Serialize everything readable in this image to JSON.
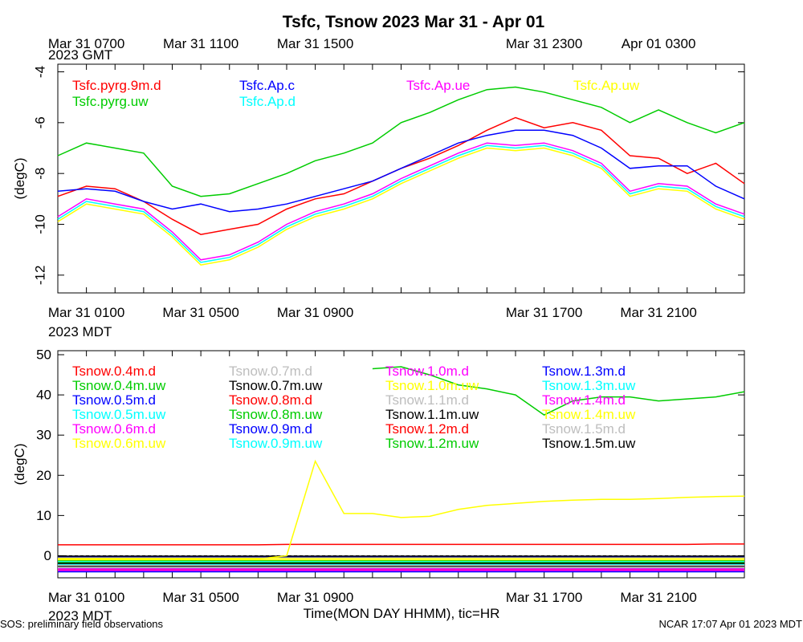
{
  "title": "Tsfc, Tsnow 2023 Mar 31 - Apr 01",
  "footer_left": "SOS: preliminary field observations",
  "footer_right": "NCAR 17:07 Apr 01 2023 MDT",
  "xlabel": "Time(MON DAY HHMM), tic=HR",
  "gmt_label": "2023 GMT",
  "mdt_label": "2023 MDT",
  "time_range_hours_mdt": [
    0,
    24
  ],
  "top_ticks_gmt": [
    "Mar 31 0700",
    "Mar 31 1100",
    "Mar 31 1500",
    "Mar 31 2300",
    "Apr 01 0300"
  ],
  "bottom_ticks_mdt": [
    "Mar 31 0100",
    "Mar 31 0500",
    "Mar 31 0900",
    "Mar 31 1700",
    "Mar 31 2100"
  ],
  "chart_data": [
    {
      "type": "line",
      "ylabel": "(degC)",
      "ylim": [
        -12.7,
        -3.7
      ],
      "yticks": [
        -12,
        -10,
        -8,
        -6,
        -4
      ],
      "x_hours": [
        0,
        1,
        2,
        3,
        4,
        5,
        6,
        7,
        8,
        9,
        10,
        11,
        12,
        13,
        14,
        15,
        16,
        17,
        18,
        19,
        20,
        21,
        22,
        23,
        24
      ],
      "series": [
        {
          "name": "Tsfc.pyrg.9m.d",
          "color": "#ff0000",
          "values": [
            -8.9,
            -8.5,
            -8.6,
            -9.1,
            -9.8,
            -10.4,
            -10.2,
            -10.0,
            -9.4,
            -9.0,
            -8.8,
            -8.3,
            -7.8,
            -7.4,
            -6.9,
            -6.3,
            -5.8,
            -6.2,
            -6.0,
            -6.3,
            -7.3,
            -7.4,
            -8.0,
            -7.6,
            -8.4
          ]
        },
        {
          "name": "Tsfc.pyrg.uw",
          "color": "#00cc00",
          "values": [
            -7.3,
            -6.8,
            -7.0,
            -7.2,
            -8.5,
            -8.9,
            -8.8,
            -8.4,
            -8.0,
            -7.5,
            -7.2,
            -6.8,
            -6.0,
            -5.6,
            -5.1,
            -4.7,
            -4.6,
            -4.8,
            -5.1,
            -5.4,
            -6.0,
            -5.5,
            -6.0,
            -6.4,
            -6.0
          ]
        },
        {
          "name": "Tsfc.Ap.c",
          "color": "#0000ff",
          "values": [
            -8.7,
            -8.6,
            -8.7,
            -9.1,
            -9.4,
            -9.2,
            -9.5,
            -9.4,
            -9.2,
            -8.9,
            -8.6,
            -8.3,
            -7.8,
            -7.3,
            -6.8,
            -6.5,
            -6.3,
            -6.3,
            -6.5,
            -7.0,
            -7.8,
            -7.7,
            -7.7,
            -8.5,
            -9.0
          ]
        },
        {
          "name": "Tsfc.Ap.d",
          "color": "#00ffff",
          "values": [
            -9.8,
            -9.1,
            -9.3,
            -9.5,
            -10.4,
            -11.5,
            -11.3,
            -10.8,
            -10.1,
            -9.6,
            -9.3,
            -8.9,
            -8.3,
            -7.8,
            -7.3,
            -6.9,
            -7.0,
            -6.9,
            -7.2,
            -7.7,
            -8.8,
            -8.5,
            -8.6,
            -9.3,
            -9.7
          ]
        },
        {
          "name": "Tsfc.Ap.ue",
          "color": "#ff00ff",
          "values": [
            -9.7,
            -9.0,
            -9.2,
            -9.4,
            -10.3,
            -11.4,
            -11.2,
            -10.7,
            -10.0,
            -9.5,
            -9.2,
            -8.8,
            -8.2,
            -7.7,
            -7.2,
            -6.8,
            -6.9,
            -6.8,
            -7.1,
            -7.6,
            -8.7,
            -8.4,
            -8.5,
            -9.2,
            -9.6
          ]
        },
        {
          "name": "Tsfc.Ap.uw",
          "color": "#ffff00",
          "values": [
            -9.9,
            -9.2,
            -9.4,
            -9.6,
            -10.5,
            -11.6,
            -11.4,
            -10.9,
            -10.2,
            -9.7,
            -9.4,
            -9.0,
            -8.4,
            -7.9,
            -7.4,
            -7.0,
            -7.1,
            -7.0,
            -7.3,
            -7.8,
            -8.9,
            -8.6,
            -8.7,
            -9.4,
            -9.8
          ]
        }
      ]
    },
    {
      "type": "line",
      "ylabel": "(degC)",
      "ylim": [
        -5.5,
        51
      ],
      "yticks": [
        0,
        10,
        20,
        30,
        40,
        50
      ],
      "x_hours": [
        0,
        1,
        2,
        3,
        4,
        5,
        6,
        7,
        8,
        9,
        10,
        11,
        12,
        13,
        14,
        15,
        16,
        17,
        18,
        19,
        20,
        21,
        22,
        23,
        24
      ],
      "series": [
        {
          "name": "Tsnow.0.4m.d",
          "color": "#ff0000",
          "values": [
            2.7,
            2.7,
            2.7,
            2.7,
            2.7,
            2.7,
            2.7,
            2.7,
            2.8,
            2.8,
            2.8,
            2.8,
            2.8,
            2.8,
            2.8,
            2.8,
            2.8,
            2.8,
            2.8,
            2.8,
            2.8,
            2.8,
            2.8,
            2.9,
            2.9
          ]
        },
        {
          "name": "Tsnow.0.4m.uw",
          "color": "#00cc00",
          "values": [
            -1.2,
            -1.2,
            -1.2,
            -1.2,
            -1.2,
            -1.2,
            -1.2,
            -1.2,
            -1.2,
            -1.2,
            -1.2,
            -1.2,
            -1.2,
            -1.2,
            -1.2,
            -1.2,
            -1.2,
            -1.2,
            -1.2,
            -1.2,
            -1.2,
            -1.2,
            -1.2,
            -1.2,
            -1.2
          ]
        },
        {
          "name": "Tsnow.0.5m.d",
          "color": "#0000ff",
          "values": [
            -0.3,
            -0.3,
            -0.3,
            -0.3,
            -0.3,
            -0.3,
            -0.3,
            -0.3,
            -0.3,
            -0.3,
            -0.3,
            -0.3,
            -0.3,
            -0.3,
            -0.3,
            -0.3,
            -0.3,
            -0.3,
            -0.3,
            -0.3,
            -0.3,
            -0.3,
            -0.3,
            -0.3,
            -0.3
          ]
        },
        {
          "name": "Tsnow.0.5m.uw",
          "color": "#00ffff",
          "values": [
            -1.5,
            -1.5,
            -1.5,
            -1.5,
            -1.5,
            -1.5,
            -1.5,
            -1.5,
            -1.5,
            -1.5,
            -1.5,
            -1.5,
            -1.5,
            -1.5,
            -1.5,
            -1.5,
            -1.5,
            -1.5,
            -1.5,
            -1.5,
            -1.5,
            -1.5,
            -1.5,
            -1.5,
            -1.5
          ]
        },
        {
          "name": "Tsnow.0.6m.d",
          "color": "#ff00ff",
          "values": [
            -3.8,
            -3.8,
            -3.8,
            -3.8,
            -3.8,
            -3.8,
            -3.8,
            -3.8,
            -3.8,
            -3.8,
            -3.8,
            -3.8,
            -3.8,
            -3.8,
            -3.8,
            -3.8,
            -3.8,
            -3.8,
            -3.8,
            -3.8,
            -3.8,
            -3.8,
            -3.8,
            -3.8,
            -3.8
          ]
        },
        {
          "name": "Tsnow.0.6m.uw",
          "color": "#ffff00",
          "values": [
            -0.6,
            -0.6,
            -0.6,
            -0.6,
            -0.6,
            -0.6,
            -0.6,
            -0.6,
            -0.6,
            -0.6,
            -0.6,
            -0.6,
            -0.6,
            -0.6,
            -0.6,
            -0.6,
            -0.6,
            -0.6,
            -0.6,
            -0.6,
            -0.6,
            -0.6,
            -0.6,
            -0.6,
            -0.6
          ]
        },
        {
          "name": "Tsnow.0.7m.d",
          "color": "#bebebe",
          "values": [
            -2.8,
            -2.8,
            -2.8,
            -2.8,
            -2.8,
            -2.8,
            -2.8,
            -2.8,
            -2.8,
            -2.8,
            -2.8,
            -2.8,
            -2.8,
            -2.8,
            -2.8,
            -2.8,
            -2.8,
            -2.8,
            -2.8,
            -2.8,
            -2.8,
            -2.8,
            -2.8,
            -2.8,
            -2.8
          ]
        },
        {
          "name": "Tsnow.0.7m.uw",
          "color": "#000000",
          "values": [
            -0.1,
            -0.1,
            -0.1,
            -0.1,
            -0.1,
            -0.1,
            -0.1,
            -0.1,
            -0.1,
            -0.1,
            -0.1,
            -0.1,
            -0.1,
            -0.1,
            -0.1,
            -0.1,
            -0.1,
            -0.1,
            -0.1,
            -0.1,
            -0.1,
            -0.1,
            -0.1,
            -0.1,
            -0.1
          ]
        },
        {
          "name": "Tsnow.0.8m.d",
          "color": "#ff0000",
          "values": [
            -2.3,
            -2.3,
            -2.3,
            -2.3,
            -2.3,
            -2.3,
            -2.3,
            -2.3,
            -2.3,
            -2.3,
            -2.3,
            -2.3,
            -2.3,
            -2.3,
            -2.3,
            -2.3,
            -2.3,
            -2.3,
            -2.3,
            -2.3,
            -2.3,
            -2.3,
            -2.3,
            -2.3,
            -2.3
          ]
        },
        {
          "name": "Tsnow.0.8m.uw",
          "color": "#00cc00",
          "values": [
            -2.0,
            -2.0,
            -2.0,
            -2.0,
            -2.0,
            -2.0,
            -2.0,
            -2.0,
            -2.0,
            -2.0,
            -2.0,
            -2.0,
            -2.0,
            -2.0,
            -2.0,
            -2.0,
            -2.0,
            -2.0,
            -2.0,
            -2.0,
            -2.0,
            -2.0,
            -2.0,
            -2.0,
            -2.0
          ]
        },
        {
          "name": "Tsnow.0.9m.d",
          "color": "#0000ff",
          "values": [
            -3.2,
            -3.2,
            -3.2,
            -3.2,
            -3.2,
            -3.2,
            -3.2,
            -3.2,
            -3.2,
            -3.2,
            -3.2,
            -3.2,
            -3.2,
            -3.2,
            -3.2,
            -3.2,
            -3.2,
            -3.2,
            -3.2,
            -3.2,
            -3.2,
            -3.2,
            -3.2,
            -3.2,
            -3.2
          ]
        },
        {
          "name": "Tsnow.0.9m.uw",
          "color": "#00ffff",
          "values": [
            -2.5,
            -2.5,
            -2.5,
            -2.5,
            -2.5,
            -2.5,
            -2.5,
            -2.5,
            -2.5,
            -2.5,
            -2.5,
            -2.5,
            -2.5,
            -2.5,
            -2.5,
            -2.5,
            -2.5,
            -2.5,
            -2.5,
            -2.5,
            -2.5,
            -2.5,
            -2.5,
            -2.5,
            -2.5
          ]
        },
        {
          "name": "Tsnow.1.0m.d",
          "color": "#ff00ff",
          "values": [
            -3.6,
            -3.6,
            -3.6,
            -3.6,
            -3.6,
            -3.6,
            -3.6,
            -3.6,
            -3.6,
            -3.6,
            -3.6,
            -3.6,
            -3.6,
            -3.6,
            -3.6,
            -3.6,
            -3.6,
            -3.6,
            -3.6,
            -3.6,
            -3.6,
            -3.6,
            -3.6,
            -3.6,
            -3.6
          ]
        },
        {
          "name": "Tsnow.1.0m.uw",
          "color": "#ffff00",
          "values": [
            -1.0,
            -1.0,
            -1.0,
            -1.0,
            -1.0,
            -1.0,
            -1.0,
            -1.0,
            -1.0,
            -1.0,
            -1.0,
            -1.0,
            -1.0,
            -1.0,
            -1.0,
            -1.0,
            -1.0,
            -1.0,
            -1.0,
            -1.0,
            -1.0,
            -1.0,
            -1.0,
            -1.0,
            -1.0
          ]
        },
        {
          "name": "Tsnow.1.1m.d",
          "color": "#bebebe",
          "values": [
            -3.0,
            -3.0,
            -3.0,
            -3.0,
            -3.0,
            -3.0,
            -3.0,
            -3.0,
            -3.0,
            -3.0,
            -3.0,
            -3.0,
            -3.0,
            -3.0,
            -3.0,
            -3.0,
            -3.0,
            -3.0,
            -3.0,
            -3.0,
            -3.0,
            -3.0,
            -3.0,
            -3.0,
            -3.0
          ]
        },
        {
          "name": "Tsnow.1.1m.uw",
          "color": "#000000",
          "values": [
            -2.6,
            -2.6,
            -2.6,
            -2.6,
            -2.6,
            -2.6,
            -2.6,
            -2.6,
            -2.6,
            -2.6,
            -2.6,
            -2.6,
            -2.6,
            -2.6,
            -2.6,
            -2.6,
            -2.6,
            -2.6,
            -2.6,
            -2.6,
            -2.6,
            -2.6,
            -2.6,
            -2.6,
            -2.6
          ]
        },
        {
          "name": "Tsnow.1.2m.d",
          "color": "#ff0000",
          "values": [
            -3.4,
            -3.4,
            -3.4,
            -3.4,
            -3.4,
            -3.4,
            -3.4,
            -3.4,
            -3.4,
            -3.4,
            -3.4,
            -3.4,
            -3.4,
            -3.4,
            -3.4,
            -3.4,
            -3.4,
            -3.4,
            -3.4,
            -3.4,
            -3.4,
            -3.4,
            -3.4,
            -3.4,
            -3.4
          ]
        },
        {
          "name": "Tsnow.1.2m.uw",
          "color": "#00cc00",
          "values": [
            -1.7,
            -1.7,
            -1.7,
            -1.7,
            -1.7,
            -1.7,
            -1.7,
            -1.7,
            -1.7,
            -1.7,
            -1.7,
            -1.7,
            -1.7,
            -1.7,
            -1.7,
            -1.7,
            -1.7,
            -1.7,
            -1.7,
            -1.7,
            -1.7,
            -1.7,
            -1.7,
            -1.7,
            -1.7
          ]
        },
        {
          "name": "Tsnow.1.3m.d",
          "color": "#0000ff",
          "values": [
            -4.0,
            -4.0,
            -4.0,
            -4.0,
            -4.0,
            -4.0,
            -4.0,
            -4.0,
            -4.0,
            -4.0,
            -4.0,
            -4.0,
            -4.0,
            -4.0,
            -4.0,
            -4.0,
            -4.0,
            -4.0,
            -4.0,
            -4.0,
            -4.0,
            -4.0,
            -4.0,
            -4.0,
            -4.0
          ]
        },
        {
          "name": "Tsnow.1.3m.uw",
          "color": "#00ffff",
          "values": [
            -2.2,
            -2.2,
            -2.2,
            -2.2,
            -2.2,
            -2.2,
            -2.2,
            -2.2,
            -2.2,
            -2.2,
            -2.2,
            -2.2,
            -2.2,
            -2.2,
            -2.2,
            -2.2,
            -2.2,
            -2.2,
            -2.2,
            -2.2,
            -2.2,
            -2.2,
            -2.2,
            -2.2,
            -2.2
          ]
        },
        {
          "name": "Tsnow.1.4m.d",
          "color": "#ff00ff",
          "values": [
            -3.3,
            -3.3,
            -3.3,
            -3.3,
            -3.3,
            -3.3,
            -3.3,
            -3.3,
            -3.3,
            -3.3,
            -3.3,
            -3.3,
            -3.3,
            -3.3,
            -3.3,
            -3.3,
            -3.3,
            -3.3,
            -3.3,
            -3.3,
            -3.3,
            -3.3,
            -3.3,
            -3.3,
            -3.3
          ]
        },
        {
          "name": "Tsnow.1.4m.uw",
          "color": "#ffff00",
          "values": [
            -0.8,
            -0.8,
            -0.8,
            -0.8,
            -0.8,
            -0.8,
            -0.8,
            -0.8,
            0.0,
            23.5,
            10.5,
            10.5,
            9.5,
            9.8,
            11.5,
            12.5,
            13.0,
            13.5,
            13.8,
            14.0,
            14.0,
            14.2,
            14.5,
            14.7,
            14.8
          ]
        },
        {
          "name": "Tsnow.1.5m.d",
          "color": "#bebebe",
          "values": [
            -2.4,
            -2.4,
            -2.4,
            -2.4,
            -2.4,
            -2.4,
            -2.4,
            -2.4,
            -2.4,
            -2.4,
            -2.4,
            -2.4,
            -2.4,
            -2.4,
            -2.4,
            -2.4,
            -2.4,
            -2.4,
            -2.4,
            -2.4,
            -2.4,
            -2.4,
            -2.4,
            -2.4,
            -2.4
          ]
        },
        {
          "name": "Tsnow.1.5m.uw",
          "color": "#000000",
          "values": [
            -1.9,
            -1.9,
            -1.9,
            -1.9,
            -1.9,
            -1.9,
            -1.9,
            -1.9,
            -1.9,
            -1.9,
            -1.9,
            -1.9,
            -1.9,
            -1.9,
            -1.9,
            -1.9,
            -1.9,
            -1.9,
            -1.9,
            -1.9,
            -1.9,
            -1.9,
            -1.9,
            -1.9,
            -1.9
          ]
        },
        {
          "name": "Tsnow.1.0m.uw (green trace)",
          "color": "#00cc00",
          "values": [
            null,
            null,
            null,
            null,
            null,
            null,
            null,
            null,
            null,
            null,
            null,
            46.5,
            47.0,
            45.0,
            42.5,
            41.5,
            40.0,
            35.0,
            38.5,
            39.5,
            39.5,
            38.5,
            39.0,
            39.5,
            40.8
          ]
        }
      ]
    }
  ]
}
